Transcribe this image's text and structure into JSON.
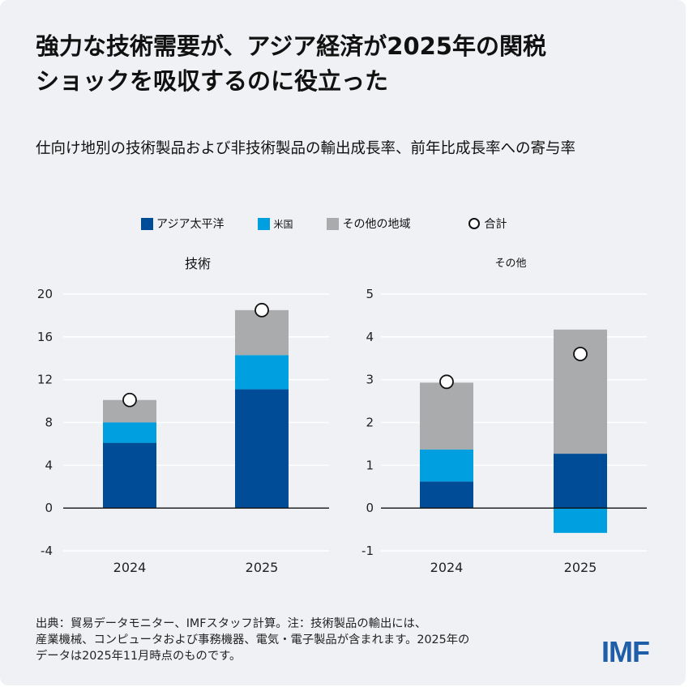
{
  "title_line1": "強力な技術需要が、アジア経済が2025年の関税",
  "title_line2": "ショックを吸収するのに役立った",
  "subtitle": "仕向け地別の技術製品および非技術製品の輸出成長率、前年比成長率への寄与率",
  "legend": [
    {
      "label": "アジア太平洋",
      "color": "#004c97",
      "kind": "square"
    },
    {
      "label": "米国",
      "color": "#009fdf",
      "kind": "square"
    },
    {
      "label": "その他の地域",
      "color": "#a9abad",
      "kind": "square"
    },
    {
      "label": "合計",
      "color": "#ffffff",
      "kind": "circle"
    }
  ],
  "chart_data": [
    {
      "type": "bar",
      "stacked": true,
      "title": "技術",
      "categories": [
        "2024",
        "2025"
      ],
      "series": [
        {
          "name": "アジア太平洋",
          "color": "#004c97",
          "values": [
            6.1,
            11.1
          ]
        },
        {
          "name": "米国",
          "color": "#009fdf",
          "values": [
            1.9,
            3.2
          ]
        },
        {
          "name": "その他の地域",
          "color": "#a9abad",
          "values": [
            2.1,
            4.2
          ]
        }
      ],
      "total": [
        10.1,
        18.5
      ],
      "yticks": [
        20,
        16,
        12,
        8,
        4,
        0,
        -4
      ],
      "ylim": [
        -4,
        20
      ],
      "grid": true
    },
    {
      "type": "bar",
      "stacked": true,
      "title": "その他",
      "categories": [
        "2024",
        "2025"
      ],
      "series": [
        {
          "name": "アジア太平洋",
          "color": "#004c97",
          "values": [
            0.62,
            1.27
          ]
        },
        {
          "name": "米国",
          "color": "#009fdf",
          "values": [
            0.75,
            -0.58
          ]
        },
        {
          "name": "その他の地域",
          "color": "#a9abad",
          "values": [
            1.56,
            2.9
          ]
        }
      ],
      "total": [
        2.95,
        3.6
      ],
      "yticks": [
        5,
        4,
        3,
        2,
        1,
        0,
        -1
      ],
      "ylim": [
        -1,
        5
      ],
      "grid": true
    }
  ],
  "source_note": {
    "line1": "出典：貿易データモニター、IMFスタッフ計算。注：技術製品の輸出には、",
    "line2": "産業機械、コンピュータおよび事務機器、電気・電子製品が含まれます。2025年の",
    "line3": "データは2025年11月時点のものです。"
  },
  "logo_text": "IMF"
}
